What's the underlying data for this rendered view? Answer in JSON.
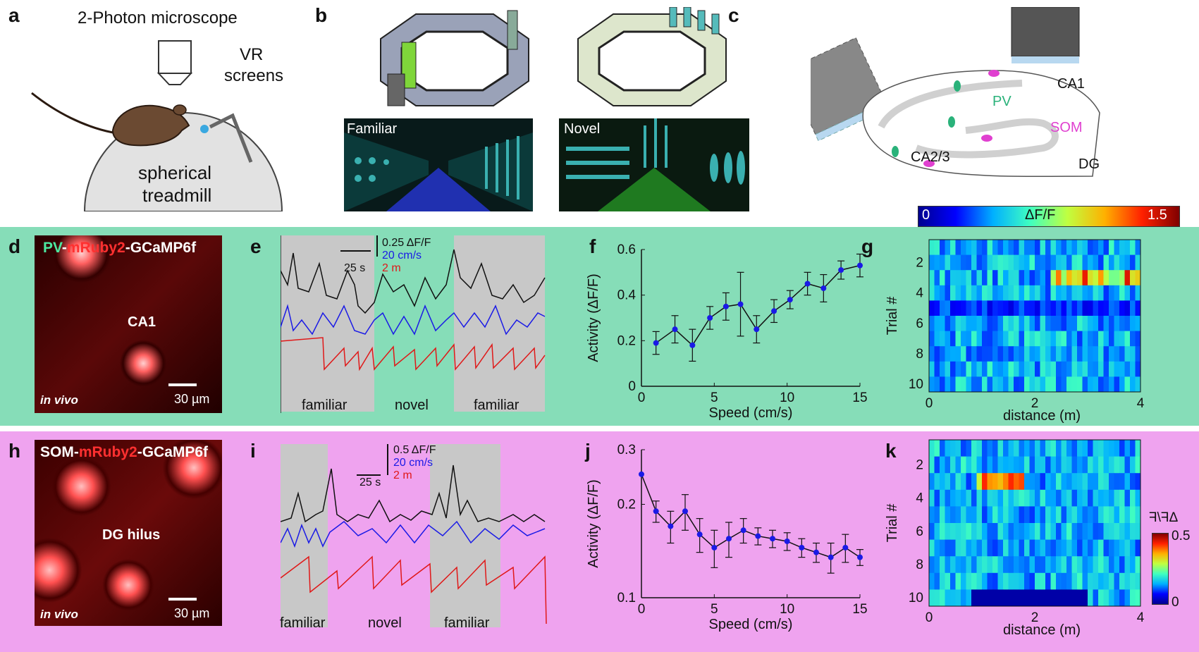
{
  "panels": {
    "a": "a",
    "b": "b",
    "c": "c",
    "d": "d",
    "e": "e",
    "f": "f",
    "g": "g",
    "h": "h",
    "i": "i",
    "j": "j",
    "k": "k"
  },
  "panel_a": {
    "microscope_label": "2-Photon microscope",
    "vr_label_1": "VR",
    "vr_label_2": "screens",
    "treadmill_1": "spherical",
    "treadmill_2": "treadmill"
  },
  "panel_b": {
    "familiar": "Familiar",
    "novel": "Novel"
  },
  "panel_c": {
    "ca1": "CA1",
    "pv": "PV",
    "som": "SOM",
    "ca23": "CA2/3",
    "dg": "DG",
    "colorbar_min": "0",
    "colorbar_label": "ΔF/F",
    "colorbar_max": "1.5"
  },
  "panel_d": {
    "title_pv": "PV",
    "title_sep1": "-",
    "title_mruby": "mRuby2",
    "title_sep2": "-",
    "title_gcamp": "GCaMP6f",
    "region": "CA1",
    "invivo": "in vivo",
    "scale": "30 µm"
  },
  "panel_e": {
    "scale_time": "25 s",
    "scale_dff": "0.25 ΔF/F",
    "scale_speed": "20 cm/s",
    "scale_pos": "2 m",
    "segments": [
      "familiar",
      "novel",
      "familiar"
    ]
  },
  "panel_h": {
    "title_som": "SOM",
    "title_sep1": "-",
    "title_mruby": "mRuby2",
    "title_sep2": "-",
    "title_gcamp": "GCaMP6f",
    "region": "DG hilus",
    "invivo": "in vivo",
    "scale": "30 µm"
  },
  "panel_i": {
    "scale_time": "25 s",
    "scale_dff": "0.5 ΔF/F",
    "scale_speed": "20 cm/s",
    "scale_pos": "2 m",
    "segments": [
      "familiar",
      "novel",
      "familiar"
    ]
  },
  "panel_k_colorbar": {
    "label": "ΔF/F",
    "max": "0.5",
    "min": "0"
  },
  "colors": {
    "top_bg": "#ffffff",
    "green_band": "#86ddb8",
    "pink_band": "#efa3ef",
    "dot_blue": "#1a1ae6",
    "trace_black": "#111111",
    "trace_blue": "#1a1ae6",
    "trace_red": "#e01818",
    "pv_green": "#2ab27a",
    "som_magenta": "#e040d0"
  },
  "chart_data": [
    {
      "id": "f",
      "type": "line",
      "xlabel": "Speed (cm/s)",
      "ylabel": "Activity (ΔF/F)",
      "xlim": [
        0,
        15
      ],
      "ylim": [
        0,
        0.6
      ],
      "xticks": [
        "0",
        "5",
        "10",
        "15"
      ],
      "yticks": [
        "0",
        "0.2",
        "0.4",
        "0.6"
      ],
      "x": [
        1,
        2.3,
        3.5,
        4.7,
        5.8,
        6.8,
        7.9,
        9.1,
        10.2,
        11.4,
        12.5,
        13.7,
        15
      ],
      "y": [
        0.19,
        0.25,
        0.18,
        0.3,
        0.35,
        0.36,
        0.25,
        0.33,
        0.38,
        0.45,
        0.43,
        0.51,
        0.53
      ],
      "err": [
        0.05,
        0.06,
        0.07,
        0.05,
        0.06,
        0.14,
        0.06,
        0.05,
        0.04,
        0.05,
        0.06,
        0.04,
        0.05
      ],
      "grid": false
    },
    {
      "id": "j",
      "type": "line",
      "xlabel": "Speed (cm/s)",
      "ylabel": "Activity (ΔF/F)",
      "xlim": [
        0,
        15
      ],
      "ylim": [
        0.1,
        0.3
      ],
      "scale": "log",
      "xticks": [
        "0",
        "5",
        "10",
        "15"
      ],
      "yticks": [
        "0.1",
        "0.2",
        "0.3"
      ],
      "x": [
        0,
        1,
        2,
        3,
        4,
        5,
        6,
        7,
        8,
        9,
        10,
        11,
        12,
        13,
        14,
        15
      ],
      "y": [
        0.25,
        0.19,
        0.17,
        0.19,
        0.16,
        0.145,
        0.155,
        0.165,
        0.158,
        0.155,
        0.152,
        0.145,
        0.14,
        0.135,
        0.145,
        0.135
      ],
      "err": [
        0.0,
        0.015,
        0.02,
        0.025,
        0.02,
        0.02,
        0.02,
        0.015,
        0.01,
        0.01,
        0.01,
        0.01,
        0.01,
        0.015,
        0.015,
        0.008
      ],
      "grid": false
    },
    {
      "id": "g",
      "type": "heatmap",
      "xlabel": "distance (m)",
      "ylabel": "Trial #",
      "xlim": [
        0,
        4
      ],
      "xticks": [
        "0",
        "2",
        "4"
      ],
      "yticks": [
        "2",
        "4",
        "6",
        "8",
        "10"
      ],
      "rows": 10,
      "range": [
        0,
        1.5
      ]
    },
    {
      "id": "k",
      "type": "heatmap",
      "xlabel": "distance (m)",
      "ylabel": "Trial #",
      "xlim": [
        0,
        4
      ],
      "xticks": [
        "0",
        "2",
        "4"
      ],
      "yticks": [
        "2",
        "4",
        "6",
        "8",
        "10"
      ],
      "rows": 10,
      "range": [
        0,
        0.5
      ]
    }
  ]
}
